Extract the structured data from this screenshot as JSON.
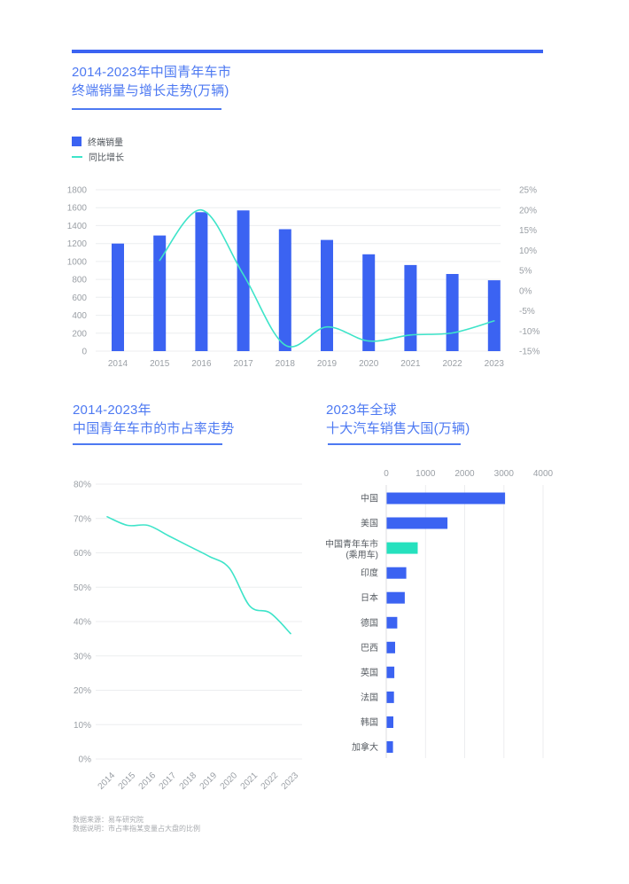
{
  "colors": {
    "blue": "#3B63F2",
    "teal": "#25E1BE",
    "teal_line": "#3EE4C9",
    "title_blue": "#4D79F2",
    "axis_text": "#9A9FA5",
    "category_text": "#565B61",
    "legend_text": "#4C5258",
    "grid": "#ECEDEF",
    "grid_dark": "#DCDEE1",
    "footer_text": "#A8ABAF"
  },
  "headers": {
    "chart1": [
      "2014-2023年中国青年车市",
      "终端销量与增长走势(万辆)"
    ],
    "chart2": [
      "2014-2023年",
      "中国青年车市的市占率走势"
    ],
    "chart3": [
      "2023年全球",
      "十大汽车销售大国(万辆)"
    ]
  },
  "legend": {
    "bar": "终端销量",
    "line": "同比增长"
  },
  "footer": {
    "source": "数据来源：易车研究院",
    "note": "数据说明：市占率指某变量占大盘的比例"
  },
  "chart_data": [
    {
      "type": "bar",
      "subtype": "combo-bar-line",
      "title": "2014-2023年中国青年车市终端销量与增长走势(万辆)",
      "categories": [
        "2014",
        "2015",
        "2016",
        "2017",
        "2018",
        "2019",
        "2020",
        "2021",
        "2022",
        "2023"
      ],
      "series": [
        {
          "name": "终端销量",
          "kind": "bar",
          "axis": "left",
          "values": [
            1200,
            1290,
            1550,
            1570,
            1360,
            1240,
            1080,
            960,
            860,
            790
          ]
        },
        {
          "name": "同比增长",
          "kind": "line",
          "axis": "right",
          "values": [
            null,
            7.5,
            20,
            4,
            -13.5,
            -9,
            -12.5,
            -11,
            -10.5,
            -7.5
          ]
        }
      ],
      "left_axis": {
        "min": 0,
        "max": 1800,
        "step": 200
      },
      "right_axis": {
        "min": -15,
        "max": 25,
        "step": 5,
        "suffix": "%"
      },
      "grid": true,
      "legend_position": "top-left"
    },
    {
      "type": "line",
      "title": "2014-2023年中国青年车市的市占率走势",
      "categories": [
        "2014",
        "2015",
        "2016",
        "2017",
        "2018",
        "2019",
        "2020",
        "2021",
        "2022",
        "2023"
      ],
      "values": [
        70.5,
        68,
        68,
        65,
        62,
        59,
        55.5,
        44.5,
        42.5,
        36.5
      ],
      "y_axis": {
        "min": 0,
        "max": 80,
        "step": 10,
        "suffix": "%"
      },
      "grid": true,
      "x_labels_rotated": true
    },
    {
      "type": "bar",
      "orientation": "horizontal",
      "title": "2023年全球十大汽车销售大国(万辆)",
      "categories": [
        "中国",
        "美国",
        "中国青年车市\n(乘用车)",
        "印度",
        "日本",
        "德国",
        "巴西",
        "英国",
        "法国",
        "韩国",
        "加拿大"
      ],
      "values": [
        3020,
        1550,
        790,
        500,
        460,
        270,
        215,
        195,
        185,
        170,
        160
      ],
      "x_axis": {
        "min": 0,
        "max": 4000,
        "step": 1000
      },
      "highlight": {
        "index": 2,
        "label": "中国青年车市(乘用车)"
      },
      "grid": true,
      "axis_position": "top"
    }
  ]
}
